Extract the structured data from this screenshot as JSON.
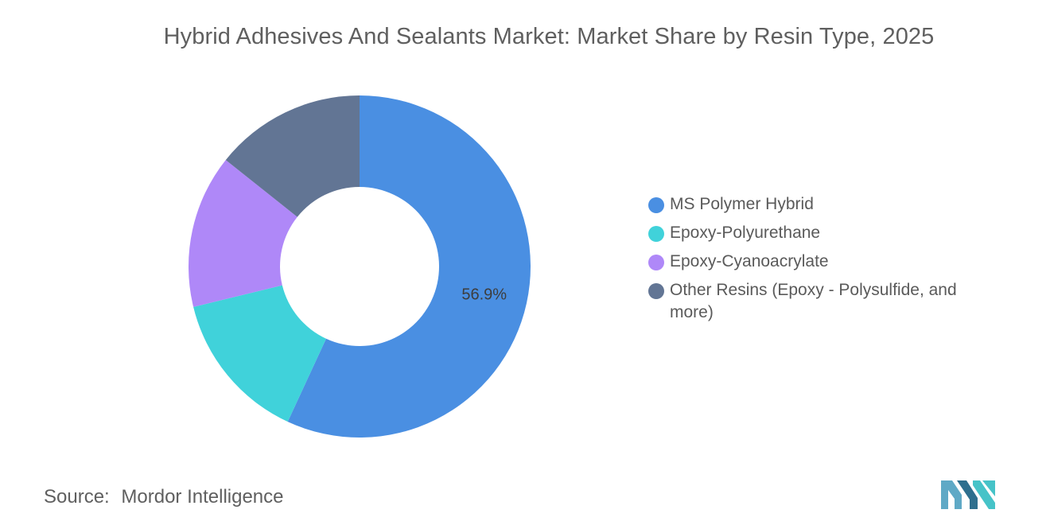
{
  "chart_data": {
    "type": "pie",
    "title": "Hybrid Adhesives And Sealants Market: Market Share by Resin Type, 2025",
    "donut": true,
    "series": [
      {
        "name": "MS Polymer Hybrid",
        "value": 56.9,
        "color": "#4a8fe2",
        "label": "56.9%"
      },
      {
        "name": "Epoxy-Polyurethane",
        "value": 14.3,
        "color": "#40d2da",
        "label": ""
      },
      {
        "name": "Epoxy-Cyanoacrylate",
        "value": 14.5,
        "color": "#af88f8",
        "label": ""
      },
      {
        "name": "Other Resins (Epoxy - Polysulfide, and more)",
        "value": 14.3,
        "color": "#627594",
        "label": ""
      }
    ],
    "legend_position": "right"
  },
  "source": {
    "prefix": "Source:",
    "text": "Mordor Intelligence"
  },
  "logo": {
    "icon": "mordor-intelligence-logo",
    "colors": [
      "#5fa9c6",
      "#2e6f8e",
      "#46c3c8"
    ]
  }
}
